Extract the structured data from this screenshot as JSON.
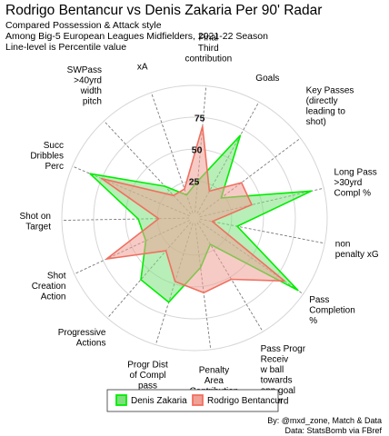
{
  "header": {
    "title": "Rodrigo Bentancur vs Denis Zakaria Per 90' Radar",
    "subtitle_lines": [
      "Compared Possession & Attack style",
      "Among Big-5 European Leagues Midfielders, 2021-22 Season",
      "Line-level is Percentile value"
    ]
  },
  "caption": {
    "line1": "By: @mxd_zone, Match & Data",
    "line2": "Data: StatsBomb via FBref"
  },
  "chart_data": {
    "type": "radar",
    "title": "Rodrigo Bentancur vs Denis Zakaria Per 90' Radar",
    "scale": {
      "min": 0,
      "max": 100
    },
    "ring_labels": [
      "25",
      "50",
      "75"
    ],
    "ring_values": [
      25,
      50,
      75,
      100
    ],
    "grid": true,
    "legend_position": "bottom",
    "categories": [
      [
        "Final",
        "Third",
        "contribution"
      ],
      [
        "Goals"
      ],
      [
        "Key Passes",
        "(directly",
        "leading to",
        "shot)"
      ],
      [
        "Long Pass",
        ">30yrd",
        "Compl %"
      ],
      [
        "non",
        "penalty xG"
      ],
      [
        "Pass",
        "Completion",
        "%"
      ],
      [
        "Pass Progr",
        "Receiv",
        "w ball",
        "towards",
        "opp goal",
        ">10yrd"
      ],
      [
        "Penalty",
        "Area",
        "Contribution"
      ],
      [
        "Progr Dist",
        "of Compl",
        "pass"
      ],
      [
        "Progressive",
        "Actions"
      ],
      [
        "Shot",
        "Creation",
        "Action"
      ],
      [
        "Shot on",
        "Target"
      ],
      [
        "Succ",
        "Dribbles",
        "Perc"
      ],
      [
        "SWPass",
        ">40yrd",
        "width",
        "pitch"
      ],
      [
        "xA"
      ]
    ],
    "series": [
      {
        "name": "Denis Zakaria",
        "color": "#00ee00",
        "fill": "#7de07d",
        "values": [
          25,
          70,
          22,
          90,
          30,
          95,
          20,
          35,
          65,
          60,
          38,
          40,
          85,
          30,
          15
        ]
      },
      {
        "name": "Rodrigo Bentancur",
        "color": "#f07060",
        "fill": "#f0a095",
        "values": [
          68,
          20,
          42,
          42,
          10,
          82,
          52,
          55,
          48,
          30,
          72,
          24,
          75,
          20,
          20
        ]
      }
    ]
  }
}
